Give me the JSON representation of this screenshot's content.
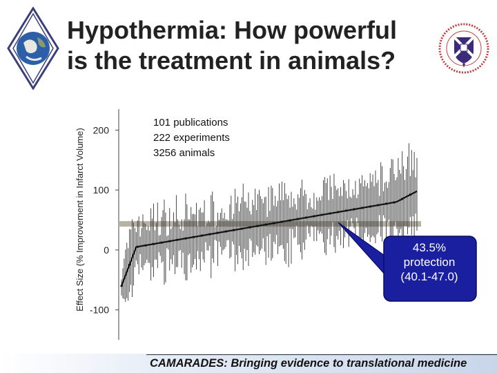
{
  "slide": {
    "title_line1": "Hypothermia: How powerful",
    "title_line2": "is the treatment in animals?",
    "footer": "CAMARADES: Bringing evidence to translational medicine"
  },
  "chart_data": {
    "type": "scatter",
    "title": "",
    "ylabel": "Effect Size (% Improvement in Infarct Volume)",
    "xlabel": "",
    "ylim": [
      -150,
      235
    ],
    "yticks": [
      -100,
      0,
      100,
      200
    ],
    "annotations": [
      "101 publications",
      "222 experiments",
      "3256 animals"
    ],
    "pooled_estimate": {
      "value": 43.5,
      "ci_low": 40.1,
      "ci_high": 47.0,
      "label_lines": [
        "43.5%",
        "protection",
        "(40.1-47.0)"
      ]
    },
    "series": [
      {
        "n_experiments": 222,
        "note": "ranked effect sizes with 95% confidence interval whiskers",
        "y_min": -60,
        "y_max": 98,
        "median": 40
      }
    ],
    "colors": {
      "points": "#111111",
      "whiskers": "#333333",
      "pooled_band": "#b7b2a4",
      "callout": "#1a1fa0"
    }
  }
}
